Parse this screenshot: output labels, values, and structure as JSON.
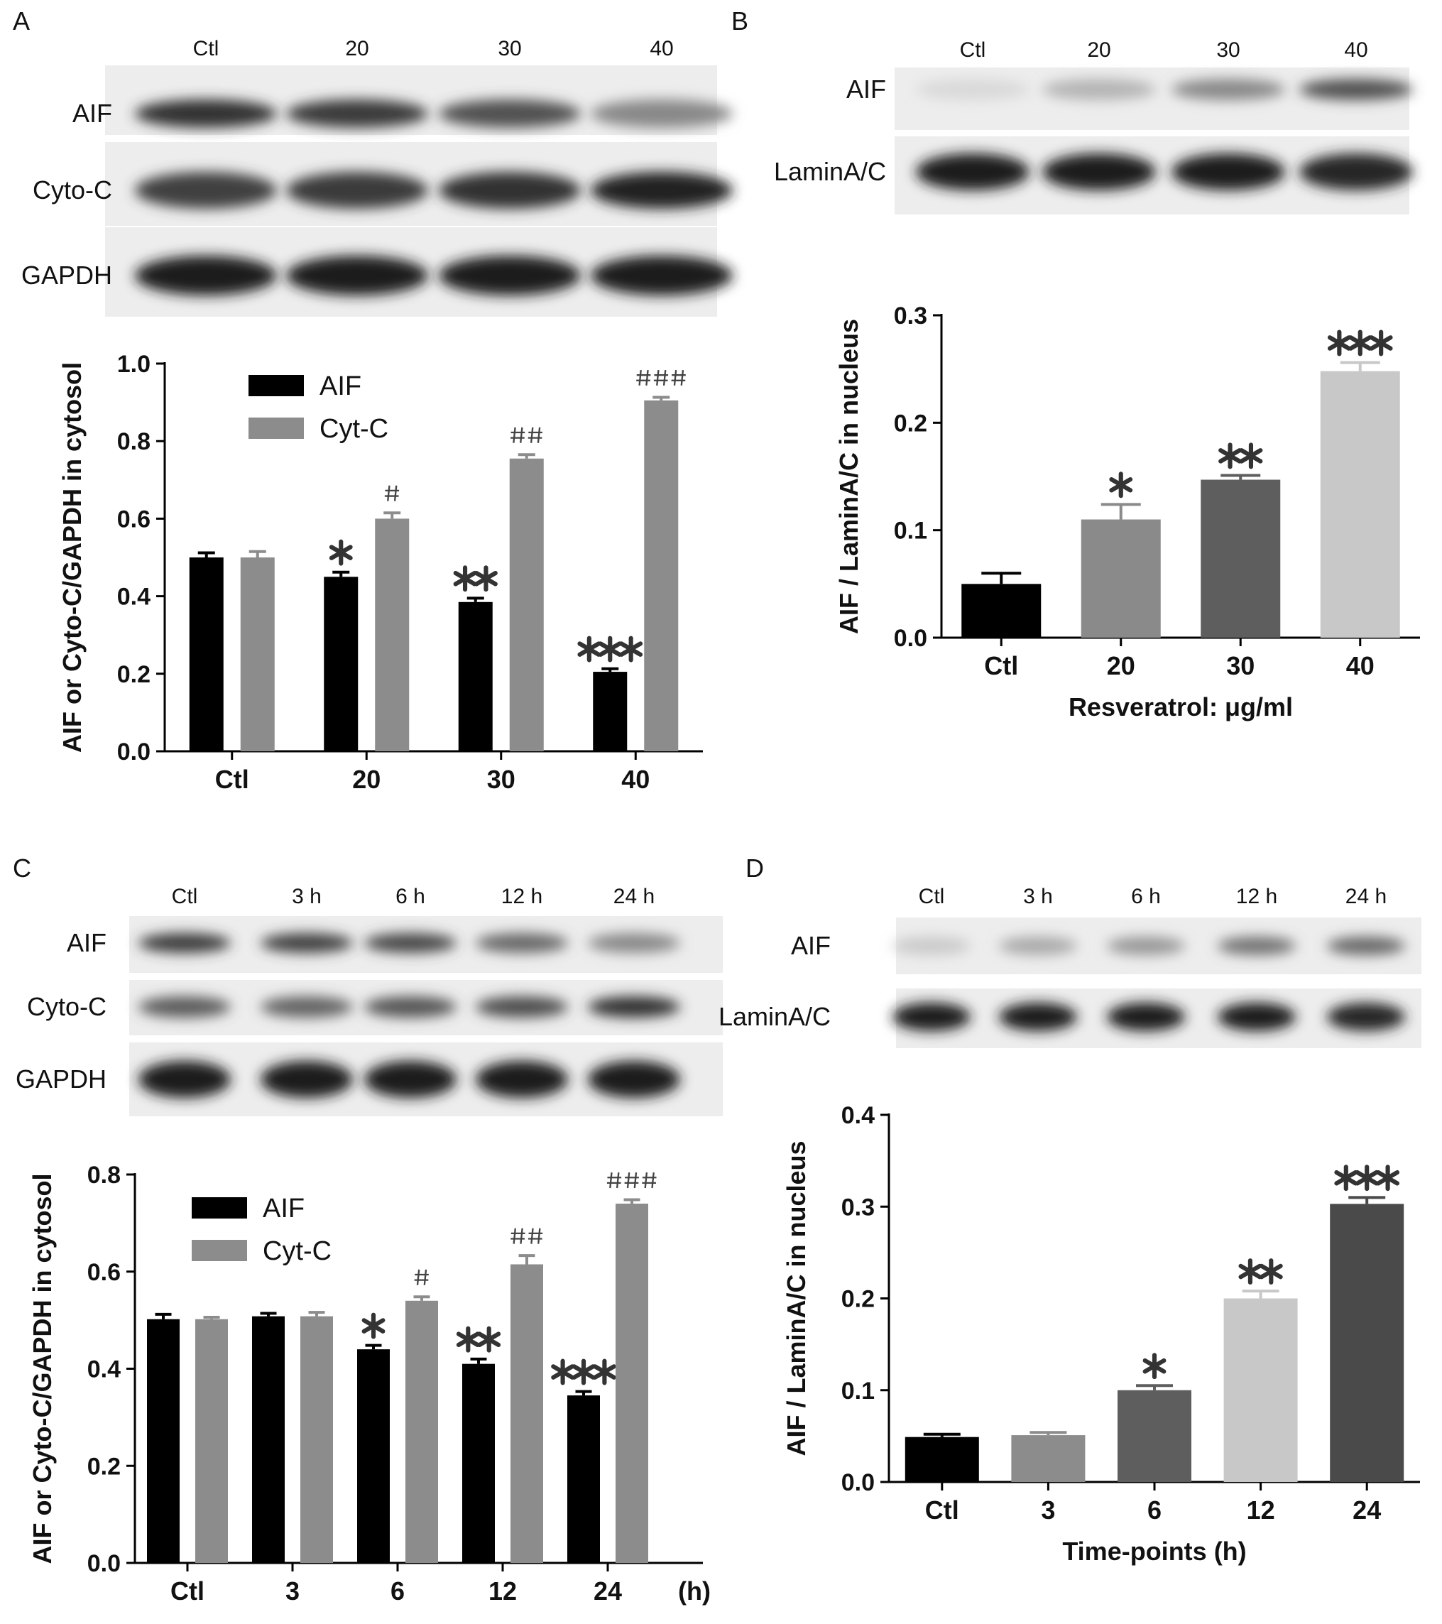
{
  "panels": [
    {
      "letter": "A",
      "blot": {
        "lanes": [
          "Ctl",
          "20",
          "30",
          "40"
        ],
        "rows": [
          {
            "label": "AIF",
            "intensities": [
              0.85,
              0.8,
              0.7,
              0.45
            ]
          },
          {
            "label": "Cyto-C",
            "intensities": [
              0.78,
              0.8,
              0.85,
              0.92
            ]
          },
          {
            "label": "GAPDH",
            "intensities": [
              0.95,
              0.95,
              0.95,
              0.95
            ]
          }
        ]
      }
    },
    {
      "letter": "B",
      "blot": {
        "lanes": [
          "Ctl",
          "20",
          "30",
          "40"
        ],
        "rows": [
          {
            "label": "AIF",
            "intensities": [
              0.08,
              0.25,
              0.45,
              0.7
            ]
          },
          {
            "label": "LaminA/C",
            "intensities": [
              0.95,
              0.95,
              0.93,
              0.9
            ]
          }
        ]
      }
    },
    {
      "letter": "C",
      "blot": {
        "lanes": [
          "Ctl",
          "3 h",
          "6 h",
          "12 h",
          "24 h"
        ],
        "rows": [
          {
            "label": "AIF",
            "intensities": [
              0.8,
              0.78,
              0.75,
              0.6,
              0.45
            ]
          },
          {
            "label": "Cyto-C",
            "intensities": [
              0.65,
              0.62,
              0.68,
              0.72,
              0.85
            ]
          },
          {
            "label": "GAPDH",
            "intensities": [
              0.95,
              0.95,
              0.95,
              0.95,
              0.95
            ]
          }
        ]
      }
    },
    {
      "letter": "D",
      "blot": {
        "lanes": [
          "Ctl",
          "3 h",
          "6 h",
          "12 h",
          "24 h"
        ],
        "rows": [
          {
            "label": "AIF",
            "intensities": [
              0.15,
              0.3,
              0.38,
              0.55,
              0.6
            ]
          },
          {
            "label": "LaminA/C",
            "intensities": [
              0.95,
              0.95,
              0.95,
              0.93,
              0.9
            ]
          }
        ]
      }
    }
  ],
  "chart_data": [
    {
      "panel": "A",
      "type": "bar",
      "categories": [
        "Ctl",
        "20",
        "30",
        "40"
      ],
      "series": [
        {
          "name": "AIF",
          "color": "#000000",
          "values": [
            0.5,
            0.45,
            0.385,
            0.205
          ],
          "errors": [
            0.012,
            0.012,
            0.01,
            0.008
          ],
          "annotations": [
            "",
            "*",
            "**",
            "***"
          ]
        },
        {
          "name": "Cyt-C",
          "color": "#8c8c8c",
          "values": [
            0.5,
            0.6,
            0.755,
            0.905
          ],
          "errors": [
            0.015,
            0.015,
            0.01,
            0.008
          ],
          "annotations": [
            "",
            "#",
            "##",
            "###"
          ]
        }
      ],
      "ylabel": "AIF or Cyto-C/GAPDH in cytosol",
      "xlabel": "",
      "ylim": [
        0,
        1.0
      ],
      "yticks": [
        "0.0",
        "0.2",
        "0.4",
        "0.6",
        "0.8",
        "1.0"
      ],
      "legend": "top-left",
      "grid": false
    },
    {
      "panel": "B",
      "type": "bar",
      "categories": [
        "Ctl",
        "20",
        "30",
        "40"
      ],
      "series": [
        {
          "values": [
            0.05,
            0.11,
            0.147,
            0.248
          ],
          "errors": [
            0.01,
            0.014,
            0.004,
            0.008
          ],
          "colors": [
            "#000000",
            "#8a8a8a",
            "#5e5e5e",
            "#c8c8c8"
          ],
          "annotations": [
            "",
            "*",
            "**",
            "***"
          ]
        }
      ],
      "ylabel": "AIF / LaminA/C in nucleus",
      "xlabel": "Resveratrol: μg/ml",
      "ylim": [
        0,
        0.3
      ],
      "yticks": [
        "0.0",
        "0.1",
        "0.2",
        "0.3"
      ],
      "grid": false
    },
    {
      "panel": "C",
      "type": "bar",
      "categories": [
        "Ctl",
        "3",
        "6",
        "12",
        "24"
      ],
      "unit_label": "(h)",
      "series": [
        {
          "name": "AIF",
          "color": "#000000",
          "values": [
            0.502,
            0.508,
            0.44,
            0.41,
            0.345
          ],
          "errors": [
            0.01,
            0.006,
            0.008,
            0.01,
            0.008
          ],
          "annotations": [
            "",
            "",
            "*",
            "**",
            "***"
          ]
        },
        {
          "name": "Cyt-C",
          "color": "#8c8c8c",
          "values": [
            0.502,
            0.508,
            0.54,
            0.615,
            0.74
          ],
          "errors": [
            0.004,
            0.008,
            0.008,
            0.018,
            0.008
          ],
          "annotations": [
            "",
            "",
            "#",
            "##",
            "###"
          ]
        }
      ],
      "ylabel": "AIF or Cyto-C/GAPDH in cytosol",
      "xlabel": "",
      "ylim": [
        0,
        0.8
      ],
      "yticks": [
        "0.0",
        "0.2",
        "0.4",
        "0.6",
        "0.8"
      ],
      "legend": "top-left",
      "grid": false
    },
    {
      "panel": "D",
      "type": "bar",
      "categories": [
        "Ctl",
        "3",
        "6",
        "12",
        "24"
      ],
      "series": [
        {
          "values": [
            0.049,
            0.051,
            0.1,
            0.2,
            0.303
          ],
          "errors": [
            0.003,
            0.003,
            0.005,
            0.008,
            0.007
          ],
          "colors": [
            "#000000",
            "#8c8c8c",
            "#5e5e5e",
            "#c8c8c8",
            "#4a4a4a"
          ],
          "annotations": [
            "",
            "",
            "*",
            "**",
            "***"
          ]
        }
      ],
      "ylabel": "AIF / LaminA/C in nucleus",
      "xlabel": "Time-points (h)",
      "ylim": [
        0,
        0.4
      ],
      "yticks": [
        "0.0",
        "0.1",
        "0.2",
        "0.3",
        "0.4"
      ],
      "grid": false
    }
  ]
}
